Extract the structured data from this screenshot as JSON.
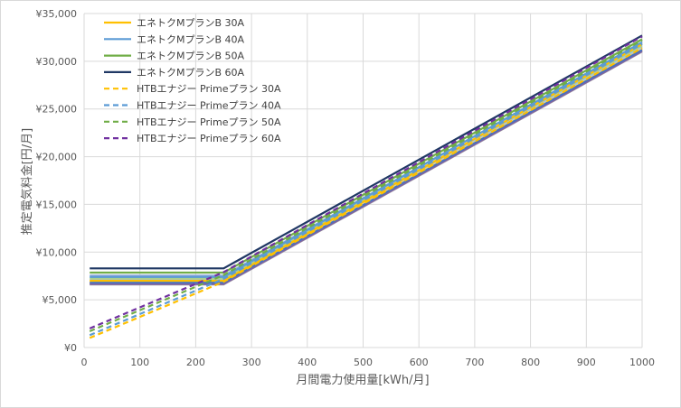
{
  "chart_data": {
    "type": "line",
    "title": "",
    "xlabel": "月間電力使用量[kWh/月]",
    "ylabel": "推定電気料金[円/月]",
    "xlim": [
      0,
      1000
    ],
    "ylim": [
      0,
      35000
    ],
    "x_ticks": [
      "0",
      "100",
      "200",
      "300",
      "400",
      "500",
      "600",
      "700",
      "800",
      "900",
      "1000"
    ],
    "y_ticks": [
      "¥0",
      "¥5,000",
      "¥10,000",
      "¥15,000",
      "¥20,000",
      "¥25,000",
      "¥30,000",
      "¥35,000"
    ],
    "grid": true,
    "legend_position": "top-left",
    "x": [
      10,
      250,
      1000
    ],
    "series": [
      {
        "name": "エネトクMプランB 30A",
        "color": "#FFC000",
        "dash": "solid",
        "values": [
          7000,
          7000,
          31800
        ]
      },
      {
        "name": "エネトクMプランB 40A",
        "color": "#5B9BD5",
        "dash": "solid",
        "values": [
          7400,
          7400,
          32000
        ]
      },
      {
        "name": "エネトクMプランB 50A",
        "color": "#70AD47",
        "dash": "solid",
        "values": [
          7850,
          7850,
          32300
        ]
      },
      {
        "name": "エネトクMプランB 60A",
        "color": "#203864",
        "dash": "solid",
        "values": [
          8300,
          8300,
          32700
        ]
      },
      {
        "name": "HTBエナジー Primeプラン 30A",
        "color": "#FFC000",
        "dash": "dashed",
        "values": [
          1000,
          6900,
          31400
        ]
      },
      {
        "name": "HTBエナジー Primeプラン 40A",
        "color": "#5B9BD5",
        "dash": "dashed",
        "values": [
          1300,
          7200,
          31800
        ]
      },
      {
        "name": "HTBエナジー Primeプラン 50A",
        "color": "#70AD47",
        "dash": "dashed",
        "values": [
          1700,
          7600,
          32200
        ]
      },
      {
        "name": "HTBエナジー Primeプラン 60A",
        "color": "#7030A0",
        "dash": "dashed",
        "values": [
          2000,
          7900,
          32600
        ]
      }
    ],
    "background_lines": {
      "colors": [
        "#A5A5A5",
        "#ED7D31",
        "#FFD966",
        "#9DC3E6",
        "#A9D18E",
        "#8FAADC",
        "#8064A2",
        "#4472C4"
      ],
      "values": [
        [
          6600,
          6600,
          31000
        ],
        [
          6750,
          6750,
          31150
        ],
        [
          6900,
          6900,
          31300
        ],
        [
          7100,
          7100,
          31500
        ],
        [
          7250,
          7250,
          31650
        ],
        [
          7550,
          7550,
          31900
        ],
        [
          6650,
          6650,
          31050
        ],
        [
          6800,
          6800,
          31200
        ]
      ]
    }
  }
}
